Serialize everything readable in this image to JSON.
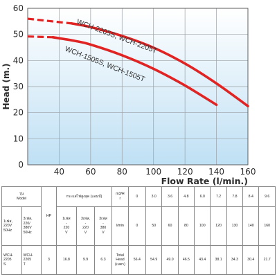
{
  "chart_data": {
    "type": "line",
    "xlabel": "Flow Rate (l/min.)",
    "ylabel": "Head (m.)",
    "xlim": [
      20,
      160
    ],
    "ylim": [
      0,
      60
    ],
    "xticks": [
      40,
      60,
      80,
      100,
      120,
      140,
      160
    ],
    "yticks": [
      0,
      10,
      20,
      30,
      40,
      50,
      60
    ],
    "grid": true,
    "series": [
      {
        "name": "WCH-2205S, WCH-2205T",
        "color": "#e02424",
        "dashed_until_x": 48,
        "x": [
          20,
          48,
          60,
          80,
          100,
          120,
          140,
          160
        ],
        "y": [
          56,
          54.2,
          52.8,
          49.4,
          44.9,
          38.8,
          31.2,
          22.5
        ]
      },
      {
        "name": "WCH-1505S, WCH-1505T",
        "color": "#e02424",
        "dashed_until_x": 36,
        "x": [
          20,
          36,
          50,
          60,
          80,
          100,
          120,
          140
        ],
        "y": [
          49.2,
          48.9,
          47.5,
          46.1,
          42,
          36.8,
          30.4,
          23
        ]
      }
    ]
  },
  "table": {
    "model_header": "รุ่น\nModel",
    "single_phase_header": "1เฟส,\n220V\n50Hz",
    "three_phase_header": "3เฟส,\n220/\n380V\n50Hz",
    "hp_header": "HP",
    "current_header": "กระแสไฟสูงสุด (แอมป์)",
    "current_single": "1เฟส\n-\n220\nV",
    "current_three_220": "3เฟส,\n-\n220\nV",
    "current_three_380": "3เฟส\n-\n380\nV",
    "flow_unit_m3": "m3/H\nr",
    "flow_unit_lpm": "l/min",
    "head_label": "Total\nHead\n(เมตร)",
    "flow_m3": [
      "0",
      "3.0",
      "3.6",
      "4.8",
      "6.0",
      "7.2",
      "7.8",
      "8.4",
      "9.6"
    ],
    "flow_lpm": [
      "0",
      "50",
      "60",
      "80",
      "100",
      "120",
      "130",
      "140",
      "160"
    ],
    "model_single": "WCH-\n2205\nS",
    "model_three": "WCH-\n2205\nT",
    "hp": "3",
    "amp_single": "16.8",
    "amp_three_220": "9.9",
    "amp_three_380": "6.3",
    "head": [
      "56.4",
      "54.9",
      "49.0",
      "46.5",
      "43.4",
      "38.1",
      "34.3",
      "30.4",
      "21.7"
    ]
  }
}
